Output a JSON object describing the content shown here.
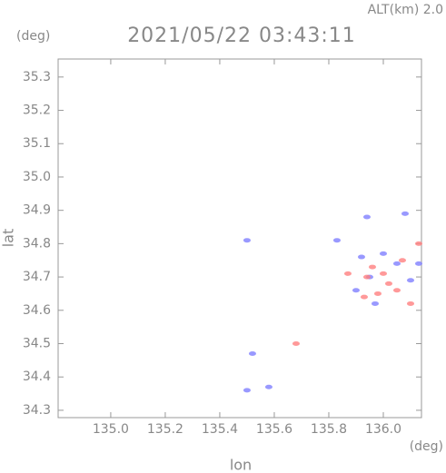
{
  "chart_data": {
    "type": "scatter",
    "title": "2021/05/22 03:43:11",
    "annotation": "ALT(km) 2.0",
    "y_unit": "(deg)",
    "x_unit": "(deg)",
    "xlabel": "lon",
    "ylabel": "lat",
    "xlim": [
      134.807,
      136.14
    ],
    "ylim": [
      34.278,
      35.354
    ],
    "xticks": [
      {
        "value": 135,
        "label": "135.0"
      },
      135.2,
      135.4,
      135.6,
      135.8,
      {
        "value": 136,
        "label": "136.0"
      }
    ],
    "yticks": [
      34.3,
      34.4,
      34.5,
      34.6,
      34.7,
      34.8,
      34.9,
      {
        "value": 35,
        "label": "35.0"
      },
      35.1,
      35.2,
      35.3
    ],
    "series": [
      {
        "color": "#7f7fff",
        "x": [
          135.5,
          135.83,
          135.52,
          135.5,
          135.58,
          135.94,
          136.08,
          136.0,
          136.05,
          135.95,
          135.9,
          136.1,
          136.13,
          135.97,
          135.92
        ],
        "values": [
          34.81,
          34.81,
          34.47,
          34.36,
          34.37,
          34.88,
          34.89,
          34.77,
          34.74,
          34.7,
          34.66,
          34.69,
          34.74,
          34.62,
          34.76
        ]
      },
      {
        "color": "#ff7f7f",
        "x": [
          135.68,
          135.94,
          136.0,
          135.98,
          136.05,
          136.1,
          136.13,
          135.93,
          136.07,
          135.87,
          136.02,
          135.96
        ],
        "values": [
          34.5,
          34.7,
          34.71,
          34.65,
          34.66,
          34.62,
          34.8,
          34.64,
          34.75,
          34.71,
          34.68,
          34.73
        ]
      }
    ]
  }
}
